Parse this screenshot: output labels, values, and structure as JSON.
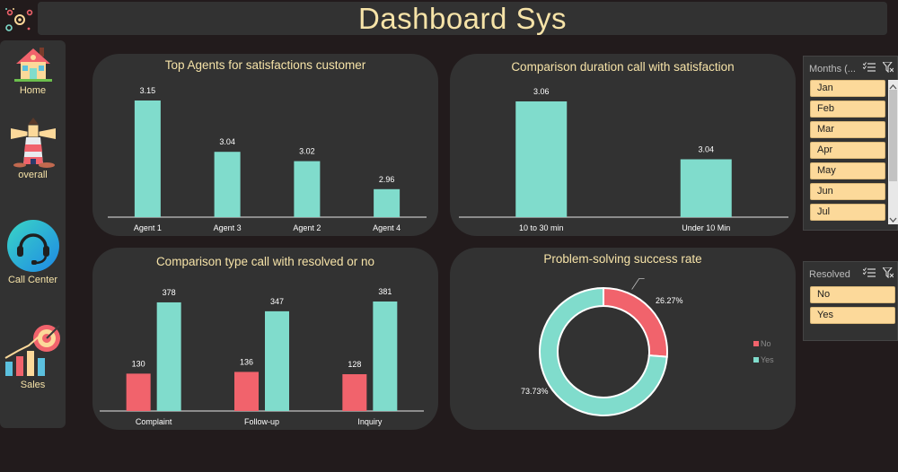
{
  "app": {
    "title": "Dashboard Sys"
  },
  "nav": [
    {
      "label": "Home",
      "icon": "house-icon"
    },
    {
      "label": "overall",
      "icon": "lighthouse-icon"
    },
    {
      "label": "Call Center",
      "icon": "headset-icon"
    },
    {
      "label": "Sales",
      "icon": "sales-growth-icon"
    }
  ],
  "cards": {
    "agents": "Top Agents for satisfactions customer",
    "duration": "Comparison duration call with satisfaction",
    "type": "Comparison type call with resolved or no",
    "rate": "Problem-solving success rate"
  },
  "slicers": {
    "months": {
      "header": "Months (...",
      "items": [
        "Jan",
        "Feb",
        "Mar",
        "Apr",
        "May",
        "Jun",
        "Jul"
      ]
    },
    "resolved": {
      "header": "Resolved",
      "items": [
        "No",
        "Yes"
      ]
    }
  },
  "colors": {
    "teal": "#80dccc",
    "coral": "#f1636c",
    "bg": "#221b1c",
    "panel": "#323232",
    "text": "#f6e3a8",
    "slicer": "#fcd99a"
  },
  "chart_data": [
    {
      "type": "bar",
      "title": "Top Agents for satisfactions customer",
      "categories": [
        "Agent 1",
        "Agent 3",
        "Agent 2",
        "Agent 4"
      ],
      "values": [
        3.15,
        3.04,
        3.02,
        2.96
      ],
      "data_labels": [
        "3.15",
        "3.04",
        "3.02",
        "2.96"
      ]
    },
    {
      "type": "bar",
      "title": "Comparison duration call with satisfaction",
      "categories": [
        "10 to 30 min",
        "Under 10 Min"
      ],
      "values": [
        3.06,
        3.04
      ],
      "data_labels": [
        "3.06",
        "3.04"
      ]
    },
    {
      "type": "bar",
      "title": "Comparison type call with resolved or no",
      "categories": [
        "Complaint",
        "Follow-up",
        "Inquiry"
      ],
      "series": [
        {
          "values": [
            130,
            136,
            128
          ],
          "color": "#f1636c"
        },
        {
          "values": [
            378,
            347,
            381
          ],
          "color": "#80dccc"
        }
      ]
    },
    {
      "type": "pie",
      "title": "Problem-solving success rate",
      "donut": true,
      "legend_position": "right",
      "slices": [
        {
          "label": "No",
          "value": 26.27,
          "display": "26.27%",
          "color": "#f1636c"
        },
        {
          "label": "Yes",
          "value": 73.73,
          "display": "73.73%",
          "color": "#80dccc"
        }
      ]
    }
  ]
}
